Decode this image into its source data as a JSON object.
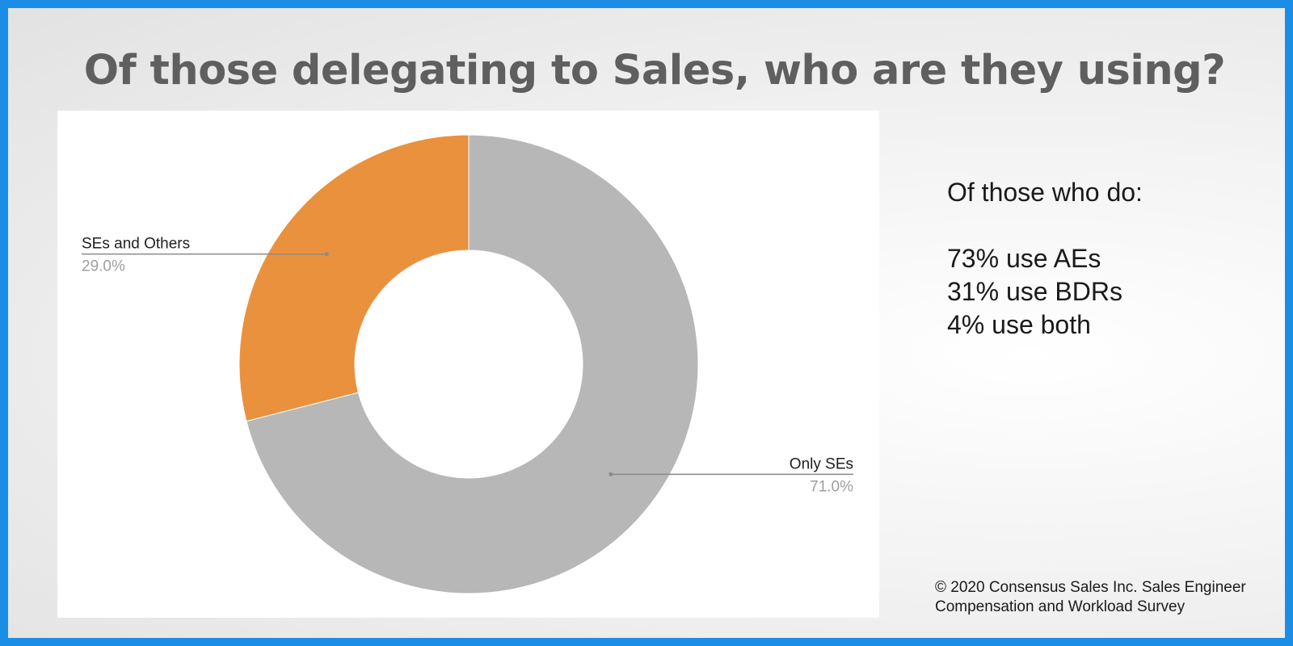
{
  "title": "Of those delegating to Sales, who are they using?",
  "chart_data": {
    "type": "pie",
    "donut": true,
    "slices": [
      {
        "label": "Only SEs",
        "value": 71.0,
        "value_label": "71.0%",
        "color": "#b7b7b7"
      },
      {
        "label": "SEs and Others",
        "value": 29.0,
        "value_label": "29.0%",
        "color": "#ea913e"
      }
    ],
    "legend": "none"
  },
  "notes": {
    "heading": "Of those who do:",
    "lines": [
      "73% use AEs",
      "31% use BDRs",
      "4% use both"
    ]
  },
  "copyright": {
    "line1": "© 2020 Consensus Sales Inc. Sales Engineer",
    "line2": "Compensation and Workload Survey"
  },
  "colors": {
    "frame": "#1a8ee6",
    "title": "#5f5f5f"
  }
}
